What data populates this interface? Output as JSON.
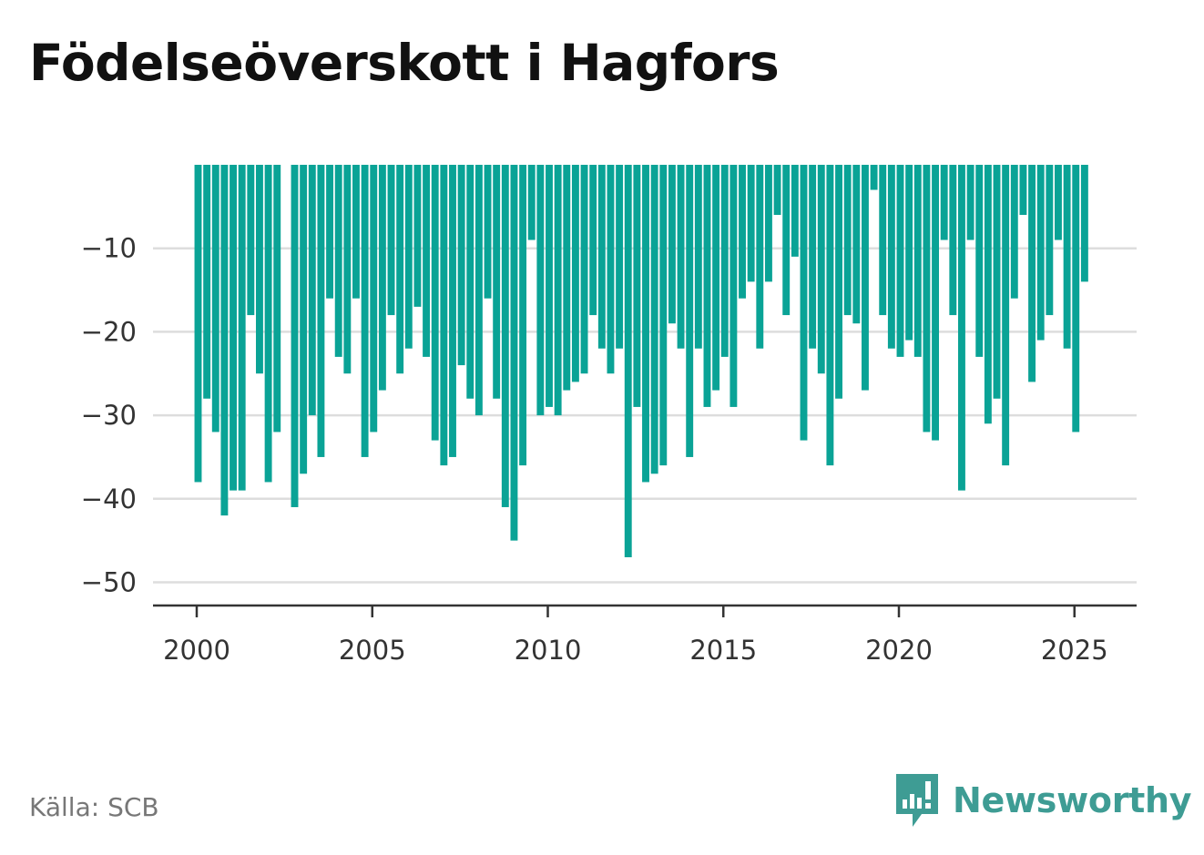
{
  "title": "Födelseöverskott i Hagfors",
  "source": "Källa: SCB",
  "brand": {
    "name": "Newsworthy",
    "icon": "newsworthy-logo-icon",
    "color": "#3e9c94"
  },
  "chart_data": {
    "type": "bar",
    "title": "Födelseöverskott i Hagfors",
    "xlabel": "",
    "ylabel": "",
    "bar_color": "#0aa396",
    "grid": true,
    "ylim": [
      -54,
      0
    ],
    "yticks": [
      -10,
      -20,
      -30,
      -40,
      -50
    ],
    "ytick_labels": [
      "−10",
      "−20",
      "−30",
      "−40",
      "−50"
    ],
    "xticks": [
      2000,
      2005,
      2010,
      2015,
      2020,
      2025
    ],
    "xtick_labels": [
      "2000",
      "2005",
      "2010",
      "2015",
      "2020",
      "2025"
    ],
    "x_start": 2000.0,
    "x_step": 0.25,
    "values": [
      -38,
      -28,
      -32,
      -42,
      -39,
      -39,
      -18,
      -25,
      -38,
      -32,
      0,
      -41,
      -37,
      -30,
      -35,
      -16,
      -23,
      -25,
      -16,
      -35,
      -32,
      -27,
      -18,
      -25,
      -22,
      -17,
      -23,
      -33,
      -36,
      -35,
      -24,
      -28,
      -30,
      -16,
      -28,
      -41,
      -45,
      -36,
      -9,
      -30,
      -29,
      -30,
      -27,
      -26,
      -25,
      -18,
      -22,
      -25,
      -22,
      -47,
      -29,
      -38,
      -37,
      -36,
      -19,
      -22,
      -35,
      -22,
      -29,
      -27,
      -23,
      -29,
      -16,
      -14,
      -22,
      -14,
      -6,
      -18,
      -11,
      -33,
      -22,
      -25,
      -36,
      -28,
      -18,
      -19,
      -27,
      -3,
      -18,
      -22,
      -23,
      -21,
      -23,
      -32,
      -33,
      -9,
      -18,
      -39,
      -9,
      -23,
      -31,
      -28,
      -36,
      -16,
      -6,
      -26,
      -21,
      -18,
      -9,
      -22,
      -32,
      -14
    ]
  }
}
